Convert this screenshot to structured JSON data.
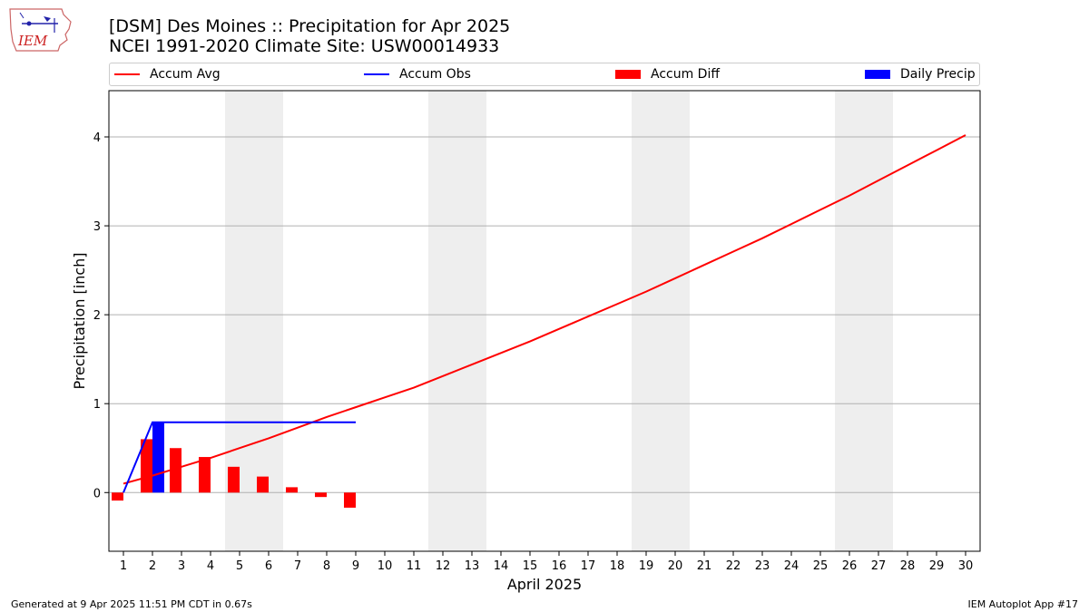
{
  "title_line1": "[DSM] Des Moines :: Precipitation for Apr 2025",
  "title_line2": "NCEI 1991-2020 Climate Site: USW00014933",
  "logo_text": "IEM",
  "footer_left": "Generated at 9 Apr 2025 11:51 PM CDT in 0.67s",
  "footer_right": "IEM Autoplot App #17",
  "legend": [
    {
      "label": "Accum Avg",
      "color": "#ff0000",
      "kind": "line"
    },
    {
      "label": "Accum Obs",
      "color": "#0000ff",
      "kind": "line"
    },
    {
      "label": "Accum Diff",
      "color": "#ff0000",
      "kind": "box"
    },
    {
      "label": "Daily Precip",
      "color": "#0000ff",
      "kind": "box"
    }
  ],
  "chart_data": {
    "type": "bar",
    "xlabel": "April 2025",
    "ylabel": "Precipitation [inch]",
    "xlim": [
      0.5,
      30.5
    ],
    "ylim": [
      -0.66,
      4.52
    ],
    "yticks": [
      0,
      1,
      2,
      3,
      4
    ],
    "xticks": [
      1,
      2,
      3,
      4,
      5,
      6,
      7,
      8,
      9,
      10,
      11,
      12,
      13,
      14,
      15,
      16,
      17,
      18,
      19,
      20,
      21,
      22,
      23,
      24,
      25,
      26,
      27,
      28,
      29,
      30
    ],
    "grid": "y",
    "legend_position": "top",
    "weekend_shading": [
      [
        4.5,
        6.5
      ],
      [
        11.5,
        13.5
      ],
      [
        18.5,
        20.5
      ],
      [
        25.5,
        27.5
      ]
    ],
    "series": [
      {
        "name": "Accum Avg",
        "type": "line",
        "color": "#ff0000",
        "x": [
          1,
          2,
          3,
          4,
          5,
          6,
          7,
          8,
          9,
          10,
          11,
          12,
          13,
          14,
          15,
          16,
          17,
          18,
          19,
          20,
          21,
          22,
          23,
          24,
          25,
          26,
          27,
          28,
          29,
          30
        ],
        "values": [
          0.1,
          0.19,
          0.29,
          0.39,
          0.5,
          0.61,
          0.73,
          0.85,
          0.96,
          1.07,
          1.18,
          1.31,
          1.44,
          1.57,
          1.7,
          1.84,
          1.98,
          2.12,
          2.26,
          2.41,
          2.56,
          2.71,
          2.86,
          3.02,
          3.18,
          3.34,
          3.51,
          3.68,
          3.85,
          4.02
        ]
      },
      {
        "name": "Accum Obs",
        "type": "line",
        "color": "#0000ff",
        "x": [
          1,
          2,
          3,
          4,
          5,
          6,
          7,
          8,
          9
        ],
        "values": [
          0.0,
          0.79,
          0.79,
          0.79,
          0.79,
          0.79,
          0.79,
          0.79,
          0.79
        ]
      },
      {
        "name": "Accum Diff",
        "type": "bar",
        "color": "#ff0000",
        "x": [
          1,
          2,
          3,
          4,
          5,
          6,
          7,
          8,
          9
        ],
        "values": [
          -0.09,
          0.6,
          0.5,
          0.4,
          0.29,
          0.18,
          0.06,
          -0.05,
          -0.17
        ]
      },
      {
        "name": "Daily Precip",
        "type": "bar",
        "color": "#0000ff",
        "x": [
          1,
          2,
          3,
          4,
          5,
          6,
          7,
          8,
          9
        ],
        "values": [
          0.0,
          0.79,
          0.0,
          0.0,
          0.0,
          0.0,
          0.0,
          0.0,
          0.0
        ]
      }
    ]
  }
}
